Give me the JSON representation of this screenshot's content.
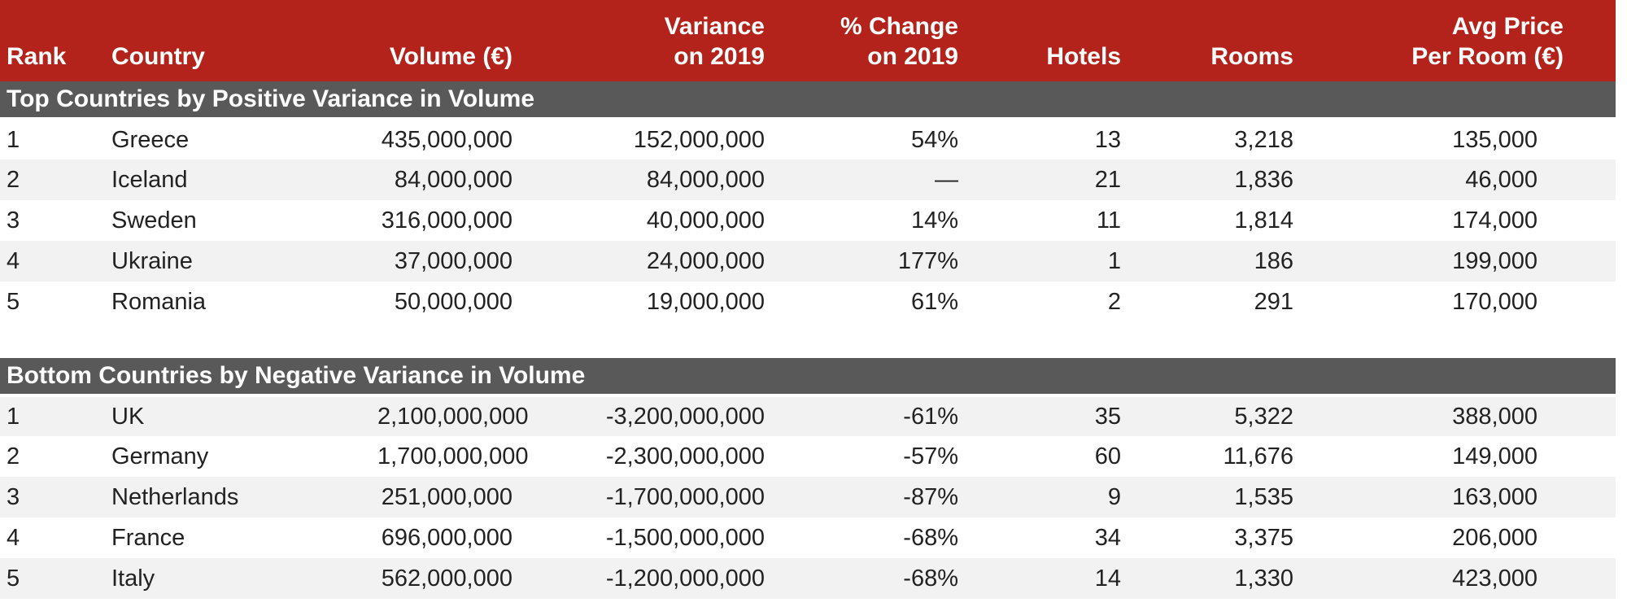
{
  "theme": {
    "header_bg": "#B3231B",
    "header_text": "#FFFFFF",
    "banner_bg": "#595959",
    "banner_text": "#FFFFFF",
    "row_bg": "#FFFFFF",
    "row_alt_bg": "#F2F2F2",
    "data_text": "#222222"
  },
  "table": {
    "columns": [
      {
        "id": "rank",
        "lines": [
          "Rank"
        ],
        "align": "left"
      },
      {
        "id": "country",
        "lines": [
          "Country"
        ],
        "align": "left"
      },
      {
        "id": "volume",
        "lines": [
          "Volume (€)"
        ],
        "align": "right"
      },
      {
        "id": "variance",
        "lines": [
          "Variance",
          "on 2019"
        ],
        "align": "right"
      },
      {
        "id": "pct_change",
        "lines": [
          "% Change",
          "on 2019"
        ],
        "align": "right"
      },
      {
        "id": "hotels",
        "lines": [
          "Hotels"
        ],
        "align": "right"
      },
      {
        "id": "rooms",
        "lines": [
          "Rooms"
        ],
        "align": "right"
      },
      {
        "id": "avg_price",
        "lines": [
          "Avg Price",
          "Per Room (€)"
        ],
        "align": "right"
      }
    ],
    "sections": [
      {
        "title": "Top Countries by Positive Variance in Volume",
        "shaded_rows": [
          1,
          3
        ],
        "rows": [
          [
            "1",
            "Greece",
            "435,000,000",
            "152,000,000",
            "54%",
            "13",
            "3,218",
            "135,000"
          ],
          [
            "2",
            "Iceland",
            "84,000,000",
            "84,000,000",
            "—",
            "21",
            "1,836",
            "46,000"
          ],
          [
            "3",
            "Sweden",
            "316,000,000",
            "40,000,000",
            "14%",
            "11",
            "1,814",
            "174,000"
          ],
          [
            "4",
            "Ukraine",
            "37,000,000",
            "24,000,000",
            "177%",
            "1",
            "186",
            "199,000"
          ],
          [
            "5",
            "Romania",
            "50,000,000",
            "19,000,000",
            "61%",
            "2",
            "291",
            "170,000"
          ]
        ]
      },
      {
        "title": "Bottom Countries by Negative Variance in Volume",
        "shaded_rows": [
          0,
          2,
          4
        ],
        "rows": [
          [
            "1",
            "UK",
            "2,100,000,000",
            "-3,200,000,000",
            "-61%",
            "35",
            "5,322",
            "388,000"
          ],
          [
            "2",
            "Germany",
            "1,700,000,000",
            "-2,300,000,000",
            "-57%",
            "60",
            "11,676",
            "149,000"
          ],
          [
            "3",
            "Netherlands",
            "251,000,000",
            "-1,700,000,000",
            "-87%",
            "9",
            "1,535",
            "163,000"
          ],
          [
            "4",
            "France",
            "696,000,000",
            "-1,500,000,000",
            "-68%",
            "34",
            "3,375",
            "206,000"
          ],
          [
            "5",
            "Italy",
            "562,000,000",
            "-1,200,000,000",
            "-68%",
            "14",
            "1,330",
            "423,000"
          ]
        ]
      }
    ]
  },
  "chart_data": [
    {
      "type": "table",
      "title": "Top Countries by Positive Variance in Volume",
      "columns": [
        "Rank",
        "Country",
        "Volume (€)",
        "Variance on 2019",
        "% Change on 2019",
        "Hotels",
        "Rooms",
        "Avg Price Per Room (€)"
      ],
      "rows": [
        [
          1,
          "Greece",
          435000000,
          152000000,
          "54%",
          13,
          3218,
          135000
        ],
        [
          2,
          "Iceland",
          84000000,
          84000000,
          "—",
          21,
          1836,
          46000
        ],
        [
          3,
          "Sweden",
          316000000,
          40000000,
          "14%",
          11,
          1814,
          174000
        ],
        [
          4,
          "Ukraine",
          37000000,
          24000000,
          "177%",
          1,
          186,
          199000
        ],
        [
          5,
          "Romania",
          50000000,
          19000000,
          "61%",
          2,
          291,
          170000
        ]
      ]
    },
    {
      "type": "table",
      "title": "Bottom Countries by Negative Variance in Volume",
      "columns": [
        "Rank",
        "Country",
        "Volume (€)",
        "Variance on 2019",
        "% Change on 2019",
        "Hotels",
        "Rooms",
        "Avg Price Per Room (€)"
      ],
      "rows": [
        [
          1,
          "UK",
          2100000000,
          -3200000000,
          "-61%",
          35,
          5322,
          388000
        ],
        [
          2,
          "Germany",
          1700000000,
          -2300000000,
          "-57%",
          60,
          11676,
          149000
        ],
        [
          3,
          "Netherlands",
          251000000,
          -1700000000,
          "-87%",
          9,
          1535,
          163000
        ],
        [
          4,
          "France",
          696000000,
          -1500000000,
          "-68%",
          34,
          3375,
          206000
        ],
        [
          5,
          "Italy",
          562000000,
          -1200000000,
          "-68%",
          14,
          1330,
          423000
        ]
      ]
    }
  ]
}
